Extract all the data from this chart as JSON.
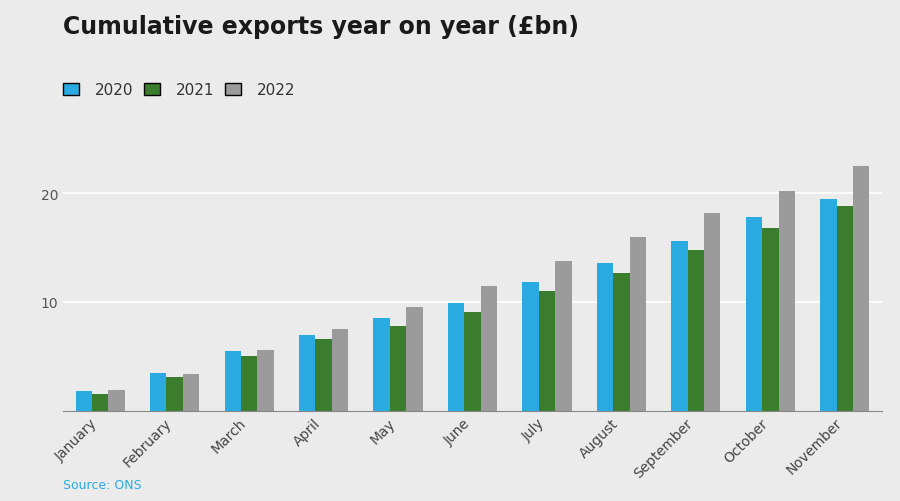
{
  "title": "Cumulative exports year on year (£bn)",
  "source": "Source: ONS",
  "categories": [
    "January",
    "February",
    "March",
    "April",
    "May",
    "June",
    "July",
    "August",
    "September",
    "October",
    "November"
  ],
  "series": {
    "2020": [
      1.8,
      3.5,
      5.5,
      7.0,
      8.5,
      9.9,
      11.8,
      13.6,
      15.6,
      17.8,
      19.5
    ],
    "2021": [
      1.5,
      3.1,
      5.0,
      6.6,
      7.8,
      9.1,
      11.0,
      12.7,
      14.8,
      16.8,
      18.8
    ],
    "2022": [
      1.9,
      3.4,
      5.6,
      7.5,
      9.5,
      11.5,
      13.8,
      16.0,
      18.2,
      20.2,
      22.5
    ]
  },
  "colors": {
    "2020": "#29ABE2",
    "2021": "#3A7D2C",
    "2022": "#9B9B9B"
  },
  "ylim": [
    0,
    24
  ],
  "yticks": [
    10,
    20
  ],
  "background_color": "#EBEBEB",
  "plot_background": "#EBEBEB",
  "grid_color": "#FFFFFF",
  "title_fontsize": 17,
  "legend_fontsize": 11,
  "tick_fontsize": 10,
  "source_fontsize": 9,
  "bar_width": 0.22
}
